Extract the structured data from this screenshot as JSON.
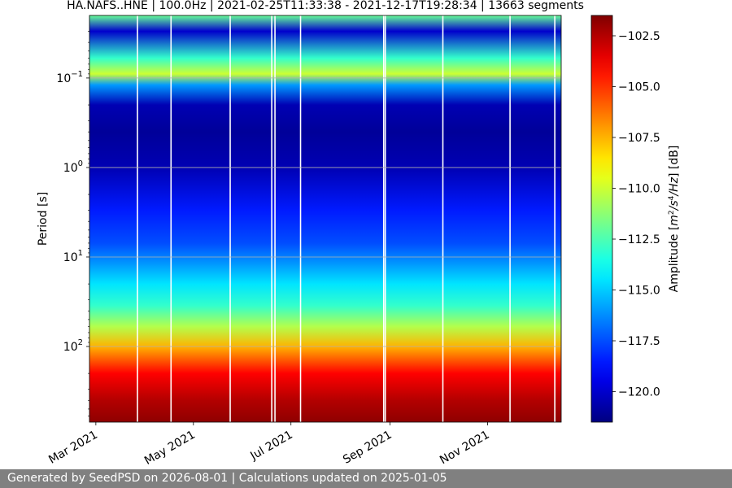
{
  "chart_data": {
    "type": "heatmap",
    "title": "HA.NAFS..HNE | 100.0Hz | 2021-02-25T11:33:38 - 2021-12-17T19:28:34 | 13663 segments",
    "xlabel": "",
    "ylabel": "Period [s]",
    "y_scale": "log",
    "y_inverted": true,
    "x_range": [
      "2021-02-25",
      "2021-12-17"
    ],
    "y_range": [
      0.02,
      700
    ],
    "x_ticks": [
      {
        "date": "2021-03-01",
        "label": "Mar 2021"
      },
      {
        "date": "2021-05-01",
        "label": "May 2021"
      },
      {
        "date": "2021-07-01",
        "label": "Jul 2021"
      },
      {
        "date": "2021-09-01",
        "label": "Sep 2021"
      },
      {
        "date": "2021-11-01",
        "label": "Nov 2021"
      }
    ],
    "y_ticks": [
      {
        "value": 0.1,
        "base": "10",
        "exp": "−1"
      },
      {
        "value": 1,
        "base": "10",
        "exp": "0"
      },
      {
        "value": 10,
        "base": "10",
        "exp": "1"
      },
      {
        "value": 100,
        "base": "10",
        "exp": "2"
      }
    ],
    "grid": true,
    "colorbar": {
      "label_prefix": "Amplitude [",
      "label_main": "m",
      "label_unit_parts": [
        "2",
        "/s",
        "4",
        "/Hz"
      ],
      "label_suffix": "] [dB]",
      "range": [
        -121.5,
        -101.5
      ],
      "ticks": [
        -102.5,
        -105.0,
        -107.5,
        -110.0,
        -112.5,
        -115.0,
        -117.5,
        -120.0
      ],
      "tick_labels": [
        "−102.5",
        "−105.0",
        "−107.5",
        "−110.0",
        "−112.5",
        "−115.0",
        "−117.5",
        "−120.0"
      ],
      "colormap": "jet"
    },
    "amplitude_profile": {
      "period_s": [
        0.02,
        0.03,
        0.06,
        0.09,
        0.12,
        0.2,
        0.4,
        1,
        3,
        7,
        12,
        20,
        35,
        60,
        100,
        200,
        400,
        700
      ],
      "amplitude_db": [
        -112,
        -120,
        -113,
        -110,
        -116,
        -120.5,
        -121,
        -120.5,
        -118.5,
        -117.5,
        -116,
        -114.5,
        -113,
        -110.5,
        -107.5,
        -104,
        -102.5,
        -101.8
      ]
    },
    "data_gap_dates": [
      "2021-03-27",
      "2021-04-17",
      "2021-05-24",
      "2021-06-19",
      "2021-06-21",
      "2021-07-07",
      "2021-08-28",
      "2021-08-29",
      "2021-10-04",
      "2021-11-15",
      "2021-12-13"
    ]
  },
  "footer": {
    "text": "Generated by SeedPSD on 2026-08-01 | Calculations updated on 2025-01-05"
  }
}
